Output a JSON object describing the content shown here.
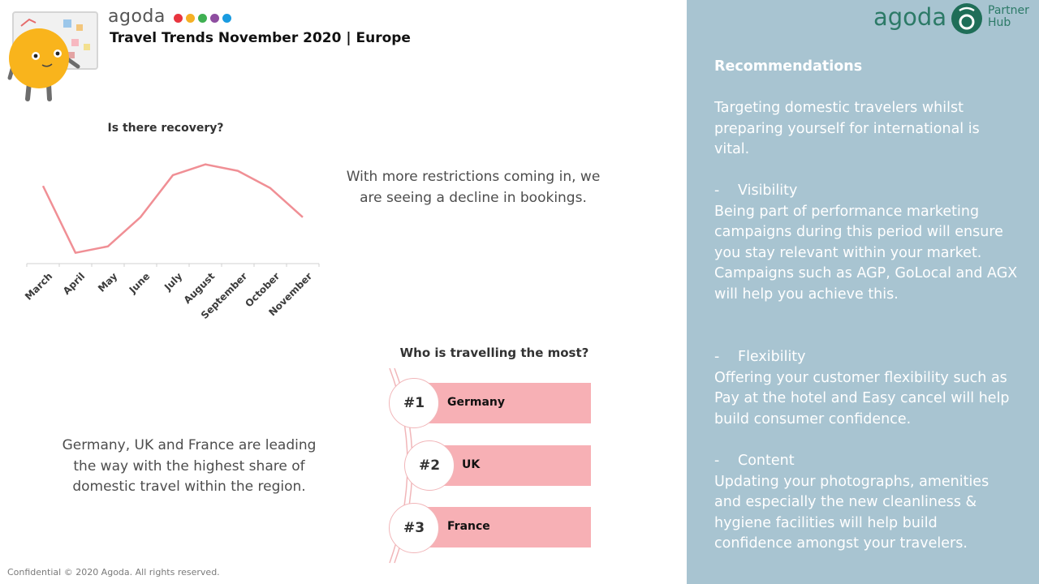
{
  "header": {
    "brand": "agoda",
    "brand_dots": [
      "#e8353f",
      "#f5b024",
      "#3fb052",
      "#8e4ea0",
      "#1a9be0"
    ],
    "title": "Travel Trends November 2020 | Europe"
  },
  "chart_data": {
    "type": "line",
    "title": "Is there recovery?",
    "categories": [
      "March",
      "April",
      "May",
      "June",
      "July",
      "August",
      "September",
      "October",
      "November"
    ],
    "values": [
      72,
      10,
      16,
      43,
      82,
      92,
      86,
      70,
      43
    ],
    "ylim": [
      0,
      100
    ],
    "xlabel": "",
    "ylabel": "",
    "grid": false,
    "line_color": "#f08f95"
  },
  "decline_text": "With more restrictions coming in, we are seeing a decline in bookings.",
  "leading_text": "Germany, UK and France are leading the way with the highest share of domestic travel within the region.",
  "ranking": {
    "title": "Who is travelling the most?",
    "items": [
      {
        "rank": "#1",
        "country": "Germany"
      },
      {
        "rank": "#2",
        "country": "UK"
      },
      {
        "rank": "#3",
        "country": "France"
      }
    ]
  },
  "footer": "Confidential © 2020 Agoda. All rights reserved.",
  "panel": {
    "logo": "agoda",
    "logo_sub1": "Partner",
    "logo_sub2": "Hub",
    "heading": "Recommendations",
    "intro": "Targeting domestic travelers whilst preparing yourself for international is vital.",
    "items": [
      {
        "dash": "-",
        "title": "Visibility",
        "text": "Being part of performance marketing campaigns during this period will ensure you stay relevant within your market. Campaigns such as AGP, GoLocal and AGX will help you achieve this."
      },
      {
        "dash": "-",
        "title": "Flexibility",
        "text": "Offering your customer flexibility such as Pay at the hotel and Easy cancel will help build consumer confidence."
      },
      {
        "dash": "-",
        "title": "Content",
        "text": "Updating your photographs, amenities and especially the new cleanliness & hygiene facilities will help build confidence amongst your travelers."
      }
    ]
  },
  "colors": {
    "panel_bg": "#a8c4d1",
    "rank_bar": "#f7b0b5",
    "logo_green": "#2c7a67"
  }
}
